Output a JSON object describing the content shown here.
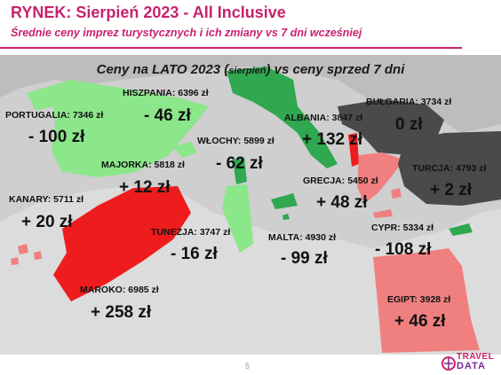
{
  "header": {
    "title": "RYNEK: Sierpień 2023 - All Inclusive",
    "subtitle": "Średnie ceny imprez turystycznych i ich zmiany vs 7 dni wcześniej"
  },
  "map": {
    "title_main": "Ceny na LATO 2023 (",
    "title_small": "sierpień",
    "title_end": ") vs ceny sprzed 7 dni"
  },
  "chart_data": {
    "type": "map",
    "title": "Ceny na LATO 2023 (sierpień) vs ceny sprzed 7 dni",
    "colors": {
      "increase_strong": "#ee1c1c",
      "increase": "#f08080",
      "decrease_strong": "#2fa84f",
      "decrease": "#8ce68a",
      "unchanged": "#4a4a4a",
      "background": "#cfcfcf"
    },
    "destinations": [
      {
        "name": "PORTUGALIA",
        "price": "7346 zł",
        "change": "- 100 zł",
        "change_value": -100,
        "color": "#8ce68a"
      },
      {
        "name": "HISZPANIA",
        "price": "6396 zł",
        "change": "- 46 zł",
        "change_value": -46,
        "color": "#8ce68a"
      },
      {
        "name": "MAJORKA",
        "price": "5818 zł",
        "change": "+ 12 zł",
        "change_value": 12,
        "color": "#8ce68a"
      },
      {
        "name": "KANARY",
        "price": "5711 zł",
        "change": "+ 20 zł",
        "change_value": 20,
        "color": "#f08080"
      },
      {
        "name": "MAROKO",
        "price": "6985 zł",
        "change": "+ 258 zł",
        "change_value": 258,
        "color": "#ee1c1c"
      },
      {
        "name": "WŁOCHY",
        "price": "5899 zł",
        "change": "- 62 zł",
        "change_value": -62,
        "color": "#2fa84f"
      },
      {
        "name": "TUNEZJA",
        "price": "3747 zł",
        "change": "- 16 zł",
        "change_value": -16,
        "color": "#8ce68a"
      },
      {
        "name": "MALTA",
        "price": "4930 zł",
        "change": "- 99 zł",
        "change_value": -99,
        "color": "#2fa84f"
      },
      {
        "name": "ALBANIA",
        "price": "3847 zł",
        "change": "+ 132 zł",
        "change_value": 132,
        "color": "#ee1c1c"
      },
      {
        "name": "BUŁGARIA",
        "price": "3734 zł",
        "change": "0 zł",
        "change_value": 0,
        "color": "#4a4a4a"
      },
      {
        "name": "GRECJA",
        "price": "5450 zł",
        "change": "+ 48 zł",
        "change_value": 48,
        "color": "#f08080"
      },
      {
        "name": "TURCJA",
        "price": "4793 zł",
        "change": "+ 2 zł",
        "change_value": 2,
        "color": "#f08080"
      },
      {
        "name": "CYPR",
        "price": "5334 zł",
        "change": "- 108 zł",
        "change_value": -108,
        "color": "#2fa84f"
      },
      {
        "name": "EGIPT",
        "price": "3928 zł",
        "change": "+ 46 zł",
        "change_value": 46,
        "color": "#f08080"
      }
    ]
  },
  "footer": {
    "page_number": "5",
    "logo_line1": "TRAVEL",
    "logo_line2": "DATA"
  }
}
